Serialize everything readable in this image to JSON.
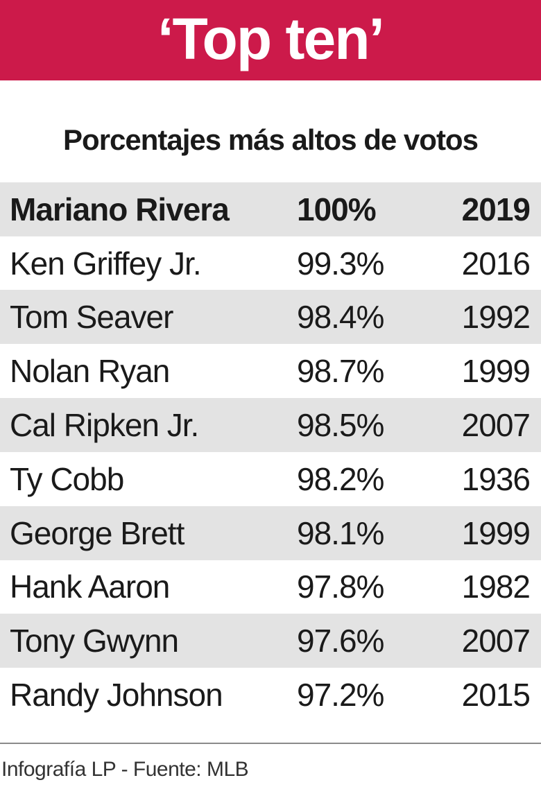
{
  "header": {
    "title": "‘Top ten’",
    "banner_color": "#cc1a4a"
  },
  "chart_data": {
    "type": "table",
    "title": "‘Top ten’",
    "subtitle": "Porcentajes más altos de votos",
    "columns": [
      "player",
      "percentage",
      "year"
    ],
    "rows": [
      {
        "player": "Mariano Rivera",
        "percentage": "100%",
        "year": "2019"
      },
      {
        "player": "Ken Griffey Jr.",
        "percentage": "99.3%",
        "year": "2016"
      },
      {
        "player": "Tom Seaver",
        "percentage": "98.4%",
        "year": "1992"
      },
      {
        "player": "Nolan Ryan",
        "percentage": "98.7%",
        "year": "1999"
      },
      {
        "player": "Cal Ripken Jr.",
        "percentage": "98.5%",
        "year": "2007"
      },
      {
        "player": "Ty Cobb",
        "percentage": "98.2%",
        "year": "1936"
      },
      {
        "player": "George Brett",
        "percentage": "98.1%",
        "year": "1999"
      },
      {
        "player": "Hank Aaron",
        "percentage": "97.8%",
        "year": "1982"
      },
      {
        "player": "Tony Gwynn",
        "percentage": "97.6%",
        "year": "2007"
      },
      {
        "player": "Randy Johnson",
        "percentage": "97.2%",
        "year": "2015"
      }
    ],
    "row_shading_color": "#e3e3e3"
  },
  "footer": {
    "credit": "Infografía LP - Fuente: MLB"
  }
}
